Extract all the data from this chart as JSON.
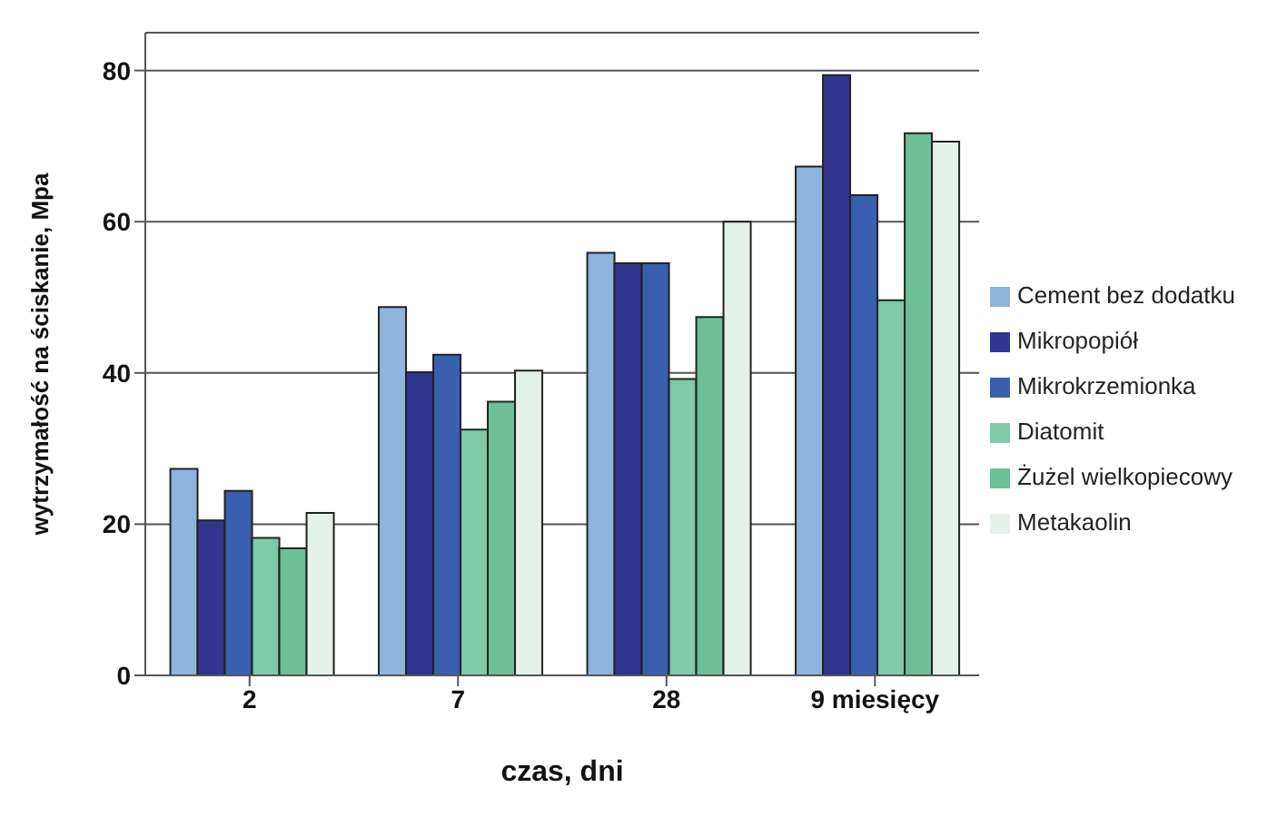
{
  "chart_data": {
    "type": "bar",
    "xlabel": "czas, dni",
    "ylabel": "wytrzymałość na ściskanie, Mpa",
    "categories": [
      "2",
      "7",
      "28",
      "9 miesięcy"
    ],
    "series": [
      {
        "name": "Cement bez dodatku",
        "color": "#8fb4dc",
        "values": [
          27.3,
          48.7,
          55.9,
          67.3
        ]
      },
      {
        "name": "Mikropopiół",
        "color": "#33348f",
        "values": [
          20.5,
          40.1,
          54.5,
          79.4
        ]
      },
      {
        "name": "Mikrokrzemionka",
        "color": "#3a5fae",
        "values": [
          24.4,
          42.4,
          54.5,
          63.5
        ]
      },
      {
        "name": "Diatomit",
        "color": "#7fcaa8",
        "values": [
          18.2,
          32.5,
          39.2,
          49.6
        ]
      },
      {
        "name": "Żużel wielkopiecowy",
        "color": "#6dbf98",
        "values": [
          16.8,
          36.2,
          47.4,
          71.7
        ]
      },
      {
        "name": "Metakaolin",
        "color": "#e4f2ea",
        "values": [
          21.5,
          40.3,
          60,
          70.6
        ]
      }
    ],
    "ylim": [
      0,
      85
    ],
    "yticks": [
      0,
      20,
      40,
      60,
      80
    ],
    "grid": "y",
    "legend": "right"
  }
}
